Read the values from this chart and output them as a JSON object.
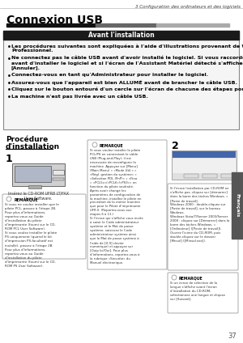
{
  "page_num": "37",
  "bg_color": "#ffffff",
  "header_text": "3 Configuration des ordinateurs et des logiciels",
  "header_color": "#3a3a3a",
  "title": "Connexion USB",
  "title_color": "#000000",
  "section_header": "Avant l'installation",
  "section_header_bg": "#1a1a1a",
  "section_header_fg": "#ffffff",
  "bullet_items": [
    "Les procédures suivantes sont expliquées à l'aide d'illustrations provenant de Windows XP\nProfessionnel.",
    "Ne connectez pas le câble USB avant d'avoir installé le logiciel. Si vous raccordez le câble USB\navant d'installer le logiciel et si l'écran de l'Assistant Matériel détecté s'affiche, cliquez sur\n[Annuler].",
    "Connectez-vous en tant qu'Administrateur pour installer le logiciel.",
    "Assurez-vous que l'appareil est bien ALLUMÉ avant de brancher le câble USB.",
    "Cliquez sur le bouton entouré d'un cercle sur l'écran de chacune des étapes pour continuer.",
    "La machine n'est pas livrée avec un câble USB."
  ],
  "box_border_color": "#888888",
  "proc_title_line1": "Procédure",
  "proc_title_line2": "d'installation",
  "proc_title_color": "#000000",
  "step1": "1",
  "step2": "2",
  "step1_img_label_line1": "Insérez le CD-ROM UFR8 LT/FAX",
  "step1_img_label_line2": "User Software.",
  "remark_label": "REMARQUE",
  "sidebar_label": "Français",
  "sidebar_bg": "#555555",
  "sidebar_fg": "#ffffff",
  "footer_num": "37",
  "rem1_text": "Si vous ne voulez installer que le\npilote PCL, passez à l'étape 2B.\nPour plus d'informations,\nreportez-vous au Guide\nd'installation du pilote\nd'imprimante (fourni sur le CD-\nROM PCL User Software).\nSi vous voulez installer le pilote\nPS uniquement (quand le kit\nd'impression PS-facultatif est\ninstallé), passez à l'étape 2B.\nPour plus d'informations,\nreportez-vous au Guide\nd'installation du pilote\nd'imprimante (fourni sur le CD-\nROM PS User Software).",
  "mid_text": "Si vous voulez installer le pilote\nPCL/PS en connectant le câble\nUSB (Plug-and-Play), il est\nnécessaire de reconfigurer la\nmachine. Appuyez sur [Menu]\n(Main Menu) « «Mode Util.» »\n«Régl. gestion du système» »\n«Sélection PDL (PnP)» » «Fino\n» «PCL5c»/«PCL6»/«PS3»» en\nfonction du pilote souhaité.\nAprès avoir changé les\nparamètres de configuration de\nla machine, installez le pilote en\nprocédant de la même manière\nque pour le Pilote d'imprimante\nUFR II. (Reportez-vous aux\nétapes 6 à 11.)\nSi l'écran qui s'affiche vous invite\nà saisir le Code administrateur\nsystème et le Mot de passe\nsystème, saisissez le Code\nadministrateur système ainsi\nque le Mot de passe système à\nl'aide de [0-9] clavier\nnumérique) et appuyez sur\n[Ouip Ici/Oui]. Pour plus\nd'informations, reportez-vous à\nla rubrique «Sécurité» du\nManuel électronique.",
  "right_text1": "Si l'écran Installation par CD-ROM ne\ns'affiche pas, cliquez sur [démarrer]\ndans la barre des tâches Windows. »\n[Poste de travail].\nWindows 2000 : double-cliquez sur\n[Poste de travail], sur le bureau\nWindows.\nWindows Vista/7/Server 2003/Server\n2008 : cliquez sur [Démarrer] dans la\nbarre des tâches Windows. »\n[Ordinateur] ([Poste de travail]).\nOuvrez l'icône du CD-ROM, puis\ndouble-cliquez sur le dossier\n[Mnsol] ([Minsol.exe]).",
  "right_text2": "Si un écran de sélection de la\nlangue s'affiche avant l'écran\nd'installation du CD-ROM,\nsélectionnez une langue et cliquez\nsur [Suivant]."
}
